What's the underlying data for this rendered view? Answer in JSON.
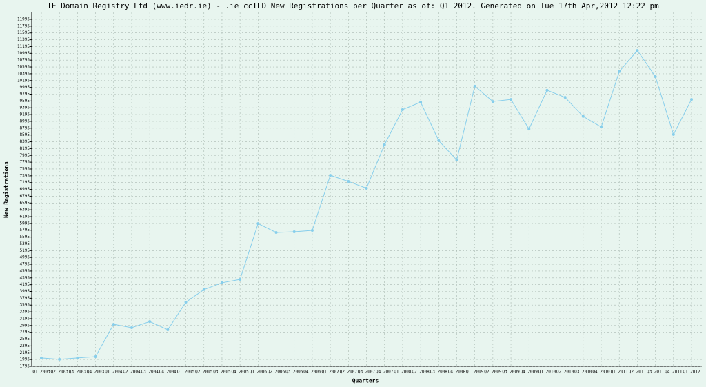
{
  "chart_data": {
    "type": "line",
    "title": "IE Domain Registry Ltd (www.iedr.ie) - .ie ccTLD New Registrations per Quarter as of: Q1 2012. Generated on Tue 17th Apr,2012 12:22 pm",
    "x_label": "Quarters",
    "y_label": "New Registrations",
    "categories": [
      "Q1 2003",
      "Q2 2003",
      "Q3 2003",
      "Q4 2003",
      "Q1 2004",
      "Q2 2004",
      "Q3 2004",
      "Q4 2004",
      "Q1 2005",
      "Q2 2005",
      "Q3 2005",
      "Q4 2005",
      "Q1 2006",
      "Q2 2006",
      "Q3 2006",
      "Q4 2006",
      "Q1 2007",
      "Q2 2007",
      "Q3 2007",
      "Q4 2007",
      "Q1 2008",
      "Q2 2008",
      "Q3 2008",
      "Q4 2008",
      "Q1 2009",
      "Q2 2009",
      "Q3 2009",
      "Q4 2009",
      "Q1 2010",
      "Q2 2010",
      "Q3 2010",
      "Q4 2010",
      "Q1 2011",
      "Q2 2011",
      "Q3 2011",
      "Q4 2011",
      "Q1 2012"
    ],
    "series": [
      {
        "color": "#87ceeb",
        "values": [
          2040,
          2000,
          2040,
          2080,
          3030,
          2930,
          3110,
          2870,
          3680,
          4050,
          4250,
          4350,
          5990,
          5730,
          5750,
          5790,
          7410,
          7230,
          7030,
          8310,
          9340,
          9560,
          8430,
          7860,
          10030,
          9580,
          9640,
          8770,
          9910,
          9700,
          9140,
          8830,
          10460,
          11080,
          10310,
          8610,
          9640
        ]
      }
    ],
    "ylim": [
      1795,
      11995
    ],
    "yticks": [
      1795,
      1995,
      2195,
      2395,
      2595,
      2795,
      2995,
      3195,
      3395,
      3595,
      3795,
      3995,
      4195,
      4395,
      4595,
      4795,
      4995,
      5195,
      5395,
      5595,
      5795,
      5995,
      6195,
      6395,
      6595,
      6795,
      6995,
      7195,
      7395,
      7595,
      7795,
      7995,
      8195,
      8395,
      8595,
      8795,
      8995,
      9195,
      9395,
      9595,
      9795,
      9995,
      10195,
      10395,
      10595,
      10795,
      10995,
      11195,
      11395,
      11595,
      11795,
      11995
    ],
    "grid": true
  }
}
